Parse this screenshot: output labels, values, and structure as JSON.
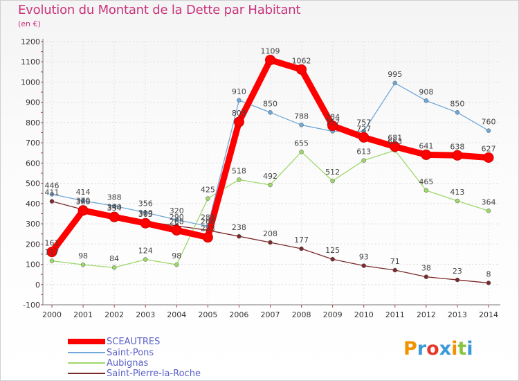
{
  "title": "Evolution du Montant de la Dette par Habitant",
  "unit": "(en €)",
  "logo": {
    "text": "Proxiti",
    "letters": [
      "P",
      "r",
      "o",
      "x",
      "i",
      "t",
      "i"
    ],
    "colors": [
      "#f29200",
      "#3a9ad9",
      "#e23a2b",
      "#3a9ad9",
      "#f29200",
      "#8ac43f",
      "#3a9ad9"
    ]
  },
  "chart_data": {
    "type": "line",
    "title": "Evolution du Montant de la Dette par Habitant",
    "ylabel": "(en €)",
    "xlabel": "",
    "ylim": [
      -100,
      1200
    ],
    "yticks": [
      -100,
      0,
      100,
      200,
      300,
      400,
      500,
      600,
      700,
      800,
      900,
      1000,
      1100,
      1200
    ],
    "categories": [
      "2000",
      "2001",
      "2002",
      "2003",
      "2004",
      "2005",
      "2006",
      "2007",
      "2008",
      "2009",
      "2010",
      "2011",
      "2012",
      "2013",
      "2014"
    ],
    "grid": true,
    "legend_position": "bottom-left",
    "series": [
      {
        "name": "SCEAUTRES",
        "color": "#ff0000",
        "style": "thick",
        "values": [
          161,
          366,
          334,
          303,
          268,
          233,
          803,
          1109,
          1062,
          784,
          727,
          681,
          641,
          638,
          627
        ],
        "labels": [
          "161",
          "366",
          "334",
          "303",
          "268",
          "233",
          "803",
          "1109",
          "1062",
          "784",
          "727",
          "681",
          "641",
          "638",
          "627"
        ]
      },
      {
        "name": "Saint-Pons",
        "color": "#6fa8d8",
        "style": "thin",
        "values": [
          446,
          414,
          388,
          356,
          320,
          288,
          910,
          850,
          788,
          757,
          757,
          995,
          908,
          850,
          760
        ],
        "labels": [
          "446",
          "414",
          "388",
          "356",
          "320",
          "288",
          "910",
          "850",
          "788",
          "757",
          "757",
          "995",
          "908",
          "850",
          "760"
        ]
      },
      {
        "name": "Aubignas",
        "color": "#9ed86a",
        "style": "thin",
        "values": [
          117,
          98,
          84,
          124,
          98,
          425,
          518,
          492,
          655,
          512,
          613,
          663,
          465,
          413,
          364
        ],
        "labels": [
          "117",
          "98",
          "84",
          "124",
          "98",
          "425",
          "518",
          "492",
          "655",
          "512",
          "613",
          "663",
          "465",
          "413",
          "364"
        ]
      },
      {
        "name": "Saint-Pierre-la-Roche",
        "color": "#7a2a2a",
        "style": "thin",
        "values": [
          411,
          370,
          340,
          310,
          290,
          268,
          238,
          208,
          177,
          125,
          93,
          71,
          38,
          23,
          8
        ],
        "labels": [
          "411",
          "370",
          "340",
          "310",
          "290",
          "268",
          "238",
          "208",
          "177",
          "125",
          "93",
          "71",
          "38",
          "23",
          "8"
        ]
      }
    ]
  }
}
